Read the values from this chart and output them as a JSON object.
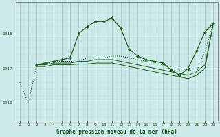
{
  "title": "Graphe pression niveau de la mer (hPa)",
  "bg_color": "#cce8e8",
  "grid_color_major": "#aacccc",
  "line_color": "#1a5c1a",
  "xlim": [
    -0.5,
    23.5
  ],
  "ylim": [
    1015.5,
    1018.9
  ],
  "yticks": [
    1016,
    1017,
    1018
  ],
  "xticks": [
    0,
    1,
    2,
    3,
    4,
    5,
    6,
    7,
    8,
    9,
    10,
    11,
    12,
    13,
    14,
    15,
    16,
    17,
    18,
    19,
    20,
    21,
    22,
    23
  ],
  "series": [
    {
      "x": [
        0,
        1,
        2,
        3,
        4,
        5,
        6,
        7,
        8,
        9,
        10,
        11,
        12,
        13,
        14,
        15,
        16,
        17,
        18,
        19,
        20,
        21,
        22,
        23
      ],
      "y": [
        1016.6,
        1016.0,
        1017.1,
        1017.1,
        1017.2,
        1017.2,
        1017.2,
        1017.2,
        1017.3,
        1017.3,
        1017.3,
        1017.35,
        1017.35,
        1017.3,
        1017.25,
        1017.2,
        1017.15,
        1017.1,
        1017.05,
        1017.0,
        1016.95,
        1016.9,
        1017.5,
        1018.3
      ],
      "linestyle": ":",
      "marker": false,
      "linewidth": 0.8
    },
    {
      "x": [
        2,
        3,
        4,
        5,
        6,
        7,
        8,
        9,
        10,
        11,
        12,
        13,
        14,
        15,
        16,
        17,
        18,
        19,
        20,
        21,
        22,
        23
      ],
      "y": [
        1017.1,
        1017.15,
        1017.2,
        1017.25,
        1017.3,
        1018.0,
        1018.2,
        1018.35,
        1018.35,
        1018.45,
        1018.15,
        1017.55,
        1017.35,
        1017.25,
        1017.2,
        1017.15,
        1016.95,
        1016.8,
        1017.0,
        1017.5,
        1018.05,
        1018.3
      ],
      "linestyle": "-",
      "marker": true,
      "linewidth": 0.9
    },
    {
      "x": [
        2,
        3,
        4,
        5,
        6,
        7,
        8,
        9,
        10,
        11,
        12,
        13,
        14,
        15,
        16,
        17,
        18,
        19,
        20,
        21,
        22,
        23
      ],
      "y": [
        1017.1,
        1017.1,
        1017.15,
        1017.15,
        1017.15,
        1017.2,
        1017.2,
        1017.25,
        1017.25,
        1017.25,
        1017.2,
        1017.15,
        1017.1,
        1017.05,
        1017.0,
        1016.95,
        1016.9,
        1016.85,
        1016.8,
        1016.9,
        1017.1,
        1018.3
      ],
      "linestyle": "-",
      "marker": false,
      "linewidth": 0.7
    },
    {
      "x": [
        2,
        3,
        4,
        5,
        6,
        7,
        8,
        9,
        10,
        11,
        12,
        13,
        14,
        15,
        16,
        17,
        18,
        19,
        20,
        21,
        22,
        23
      ],
      "y": [
        1017.05,
        1017.05,
        1017.1,
        1017.1,
        1017.1,
        1017.12,
        1017.12,
        1017.15,
        1017.15,
        1017.15,
        1017.1,
        1017.05,
        1017.0,
        1016.95,
        1016.9,
        1016.85,
        1016.8,
        1016.75,
        1016.7,
        1016.8,
        1017.0,
        1018.3
      ],
      "linestyle": "-",
      "marker": false,
      "linewidth": 0.7
    }
  ]
}
